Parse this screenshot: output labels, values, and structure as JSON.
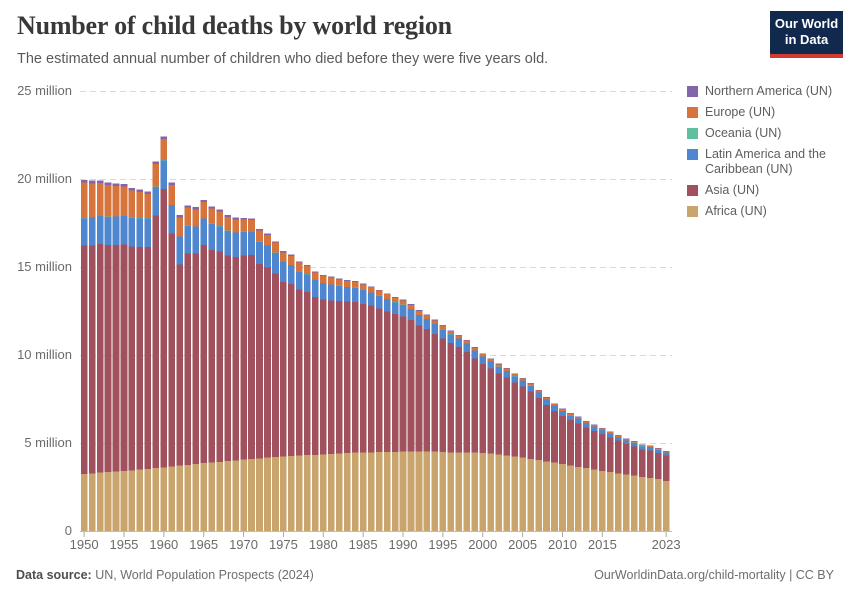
{
  "header": {
    "title": "Number of child deaths by world region",
    "subtitle": "The estimated annual number of children who died before they were five years old.",
    "logo_line1": "Our World",
    "logo_line2": "in Data",
    "logo_bg": "#12294e",
    "logo_accent": "#d13b32"
  },
  "footer": {
    "source_label": "Data source:",
    "source_value": " UN, World Population Prospects (2024)",
    "right_text": "OurWorldinData.org/child-mortality | CC BY"
  },
  "chart_data": {
    "type": "bar",
    "stacked": true,
    "unit": "million",
    "title": "Number of child deaths by world region",
    "xlabel": "",
    "ylabel": "",
    "ylim": [
      0,
      25
    ],
    "grid": "dashed-horizontal",
    "legend_position": "right",
    "y_ticks": [
      {
        "value": 0,
        "label": "0"
      },
      {
        "value": 5,
        "label": "5 million"
      },
      {
        "value": 10,
        "label": "10 million"
      },
      {
        "value": 15,
        "label": "15 million"
      },
      {
        "value": 20,
        "label": "20 million"
      },
      {
        "value": 25,
        "label": "25 million"
      }
    ],
    "x_ticks": [
      1950,
      1955,
      1960,
      1965,
      1970,
      1975,
      1980,
      1985,
      1990,
      1995,
      2000,
      2005,
      2010,
      2015,
      2023
    ],
    "x": [
      1950,
      1951,
      1952,
      1953,
      1954,
      1955,
      1956,
      1957,
      1958,
      1959,
      1960,
      1961,
      1962,
      1963,
      1964,
      1965,
      1966,
      1967,
      1968,
      1969,
      1970,
      1971,
      1972,
      1973,
      1974,
      1975,
      1976,
      1977,
      1978,
      1979,
      1980,
      1981,
      1982,
      1983,
      1984,
      1985,
      1986,
      1987,
      1988,
      1989,
      1990,
      1991,
      1992,
      1993,
      1994,
      1995,
      1996,
      1997,
      1998,
      1999,
      2000,
      2001,
      2002,
      2003,
      2004,
      2005,
      2006,
      2007,
      2008,
      2009,
      2010,
      2011,
      2012,
      2013,
      2014,
      2015,
      2016,
      2017,
      2018,
      2019,
      2020,
      2021,
      2022,
      2023
    ],
    "series": [
      {
        "id": "africa",
        "name": "Africa (UN)",
        "color": "#c9a46c",
        "values": [
          3.25,
          3.28,
          3.31,
          3.34,
          3.37,
          3.41,
          3.45,
          3.49,
          3.53,
          3.57,
          3.62,
          3.66,
          3.71,
          3.76,
          3.8,
          3.85,
          3.89,
          3.93,
          3.97,
          4.01,
          4.05,
          4.09,
          4.13,
          4.17,
          4.2,
          4.23,
          4.26,
          4.29,
          4.31,
          4.33,
          4.35,
          4.37,
          4.39,
          4.42,
          4.45,
          4.46,
          4.47,
          4.48,
          4.49,
          4.5,
          4.51,
          4.52,
          4.52,
          4.51,
          4.53,
          4.49,
          4.47,
          4.46,
          4.46,
          4.45,
          4.43,
          4.4,
          4.35,
          4.3,
          4.24,
          4.17,
          4.1,
          4.03,
          3.96,
          3.88,
          3.8,
          3.73,
          3.65,
          3.57,
          3.5,
          3.42,
          3.35,
          3.28,
          3.21,
          3.14,
          3.07,
          3.02,
          2.95,
          2.84
        ]
      },
      {
        "id": "asia",
        "name": "Asia (UN)",
        "color": "#a1515e",
        "values": [
          12.97,
          12.95,
          13.0,
          12.9,
          12.88,
          12.87,
          12.71,
          12.66,
          12.61,
          14.36,
          15.81,
          13.25,
          11.43,
          12.02,
          11.96,
          12.4,
          12.09,
          11.94,
          11.67,
          11.56,
          11.59,
          11.58,
          11.03,
          10.81,
          10.42,
          9.92,
          9.77,
          9.42,
          9.27,
          8.97,
          8.81,
          8.74,
          8.69,
          8.61,
          8.57,
          8.45,
          8.34,
          8.16,
          7.99,
          7.82,
          7.69,
          7.47,
          7.15,
          6.96,
          6.67,
          6.45,
          6.2,
          5.99,
          5.72,
          5.36,
          5.06,
          4.82,
          4.6,
          4.42,
          4.2,
          4.04,
          3.83,
          3.52,
          3.2,
          2.95,
          2.74,
          2.57,
          2.47,
          2.31,
          2.19,
          2.08,
          1.97,
          1.85,
          1.73,
          1.67,
          1.55,
          1.54,
          1.49,
          1.46
        ]
      },
      {
        "id": "latin-america",
        "name": "Latin America and the Caribbean (UN)",
        "color": "#4e86cf",
        "values": [
          1.55,
          1.57,
          1.58,
          1.6,
          1.61,
          1.61,
          1.62,
          1.62,
          1.62,
          1.62,
          1.62,
          1.6,
          1.58,
          1.56,
          1.53,
          1.5,
          1.47,
          1.44,
          1.41,
          1.38,
          1.35,
          1.31,
          1.27,
          1.23,
          1.18,
          1.13,
          1.08,
          1.04,
          1.0,
          0.96,
          0.92,
          0.89,
          0.85,
          0.82,
          0.79,
          0.77,
          0.74,
          0.72,
          0.7,
          0.67,
          0.65,
          0.62,
          0.6,
          0.57,
          0.55,
          0.52,
          0.5,
          0.48,
          0.46,
          0.44,
          0.42,
          0.4,
          0.38,
          0.37,
          0.35,
          0.34,
          0.32,
          0.31,
          0.3,
          0.29,
          0.28,
          0.27,
          0.26,
          0.25,
          0.24,
          0.23,
          0.22,
          0.21,
          0.2,
          0.2,
          0.19,
          0.2,
          0.17,
          0.16
        ]
      },
      {
        "id": "oceania",
        "name": "Oceania (UN)",
        "color": "#5fbfa0",
        "values": [
          0.02,
          0.02,
          0.02,
          0.02,
          0.02,
          0.02,
          0.02,
          0.02,
          0.02,
          0.02,
          0.018,
          0.018,
          0.018,
          0.018,
          0.018,
          0.017,
          0.017,
          0.017,
          0.017,
          0.017,
          0.016,
          0.016,
          0.016,
          0.016,
          0.015,
          0.015,
          0.015,
          0.015,
          0.015,
          0.015,
          0.015,
          0.015,
          0.014,
          0.014,
          0.014,
          0.014,
          0.014,
          0.014,
          0.013,
          0.013,
          0.013,
          0.013,
          0.013,
          0.013,
          0.013,
          0.013,
          0.012,
          0.012,
          0.012,
          0.012,
          0.012,
          0.011,
          0.011,
          0.011,
          0.011,
          0.011,
          0.011,
          0.011,
          0.01,
          0.01,
          0.01,
          0.01,
          0.01,
          0.01,
          0.01,
          0.01,
          0.01,
          0.01,
          0.009,
          0.009,
          0.009,
          0.009,
          0.009,
          0.009
        ]
      },
      {
        "id": "europe",
        "name": "Europe (UN)",
        "color": "#d6743c",
        "values": [
          2.0,
          1.93,
          1.86,
          1.79,
          1.72,
          1.65,
          1.56,
          1.47,
          1.38,
          1.29,
          1.2,
          1.14,
          1.08,
          1.02,
          0.97,
          0.92,
          0.87,
          0.82,
          0.78,
          0.74,
          0.7,
          0.67,
          0.63,
          0.6,
          0.57,
          0.54,
          0.51,
          0.48,
          0.45,
          0.42,
          0.4,
          0.38,
          0.36,
          0.34,
          0.33,
          0.31,
          0.29,
          0.28,
          0.26,
          0.25,
          0.24,
          0.23,
          0.22,
          0.21,
          0.2,
          0.19,
          0.18,
          0.17,
          0.16,
          0.15,
          0.14,
          0.13,
          0.13,
          0.12,
          0.12,
          0.11,
          0.11,
          0.1,
          0.1,
          0.09,
          0.09,
          0.09,
          0.08,
          0.08,
          0.08,
          0.08,
          0.07,
          0.07,
          0.07,
          0.06,
          0.06,
          0.06,
          0.06,
          0.06
        ]
      },
      {
        "id": "northern-america",
        "name": "Northern America (UN)",
        "color": "#8465a8",
        "values": [
          0.155,
          0.153,
          0.151,
          0.149,
          0.147,
          0.145,
          0.143,
          0.141,
          0.139,
          0.137,
          0.134,
          0.131,
          0.128,
          0.125,
          0.122,
          0.118,
          0.113,
          0.108,
          0.103,
          0.097,
          0.09,
          0.083,
          0.077,
          0.072,
          0.068,
          0.065,
          0.062,
          0.059,
          0.057,
          0.055,
          0.053,
          0.052,
          0.051,
          0.05,
          0.049,
          0.048,
          0.047,
          0.047,
          0.046,
          0.046,
          0.045,
          0.044,
          0.043,
          0.042,
          0.041,
          0.04,
          0.039,
          0.038,
          0.037,
          0.036,
          0.035,
          0.034,
          0.033,
          0.032,
          0.032,
          0.031,
          0.031,
          0.03,
          0.03,
          0.029,
          0.029,
          0.028,
          0.028,
          0.028,
          0.027,
          0.027,
          0.026,
          0.026,
          0.026,
          0.025,
          0.025,
          0.025,
          0.024,
          0.024
        ]
      }
    ]
  }
}
